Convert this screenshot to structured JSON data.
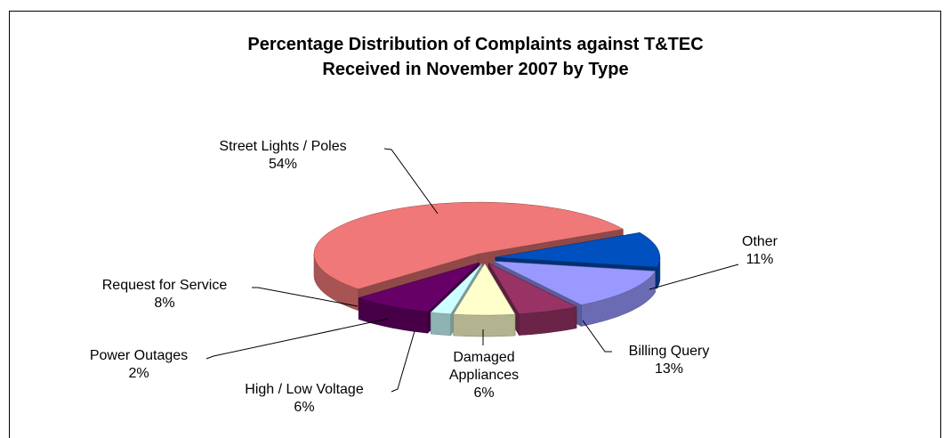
{
  "chart_data": {
    "type": "pie3d",
    "title": "Percentage Distribution of Complaints against T&TEC\nReceived in November 2007 by Type",
    "categories": [
      "Street Lights / Poles",
      "Other",
      "Billing Query",
      "Damaged\nAppliances",
      "High / Low Voltage",
      "Power Outages",
      "Request for Service"
    ],
    "values": [
      54,
      11,
      13,
      6,
      6,
      2,
      8
    ],
    "value_labels": [
      "54%",
      "11%",
      "13%",
      "6%",
      "6%",
      "2%",
      "8%"
    ],
    "colors": [
      "#f07878",
      "#0050c0",
      "#9999ff",
      "#993366",
      "#ffffcc",
      "#ccffff",
      "#660066"
    ]
  }
}
